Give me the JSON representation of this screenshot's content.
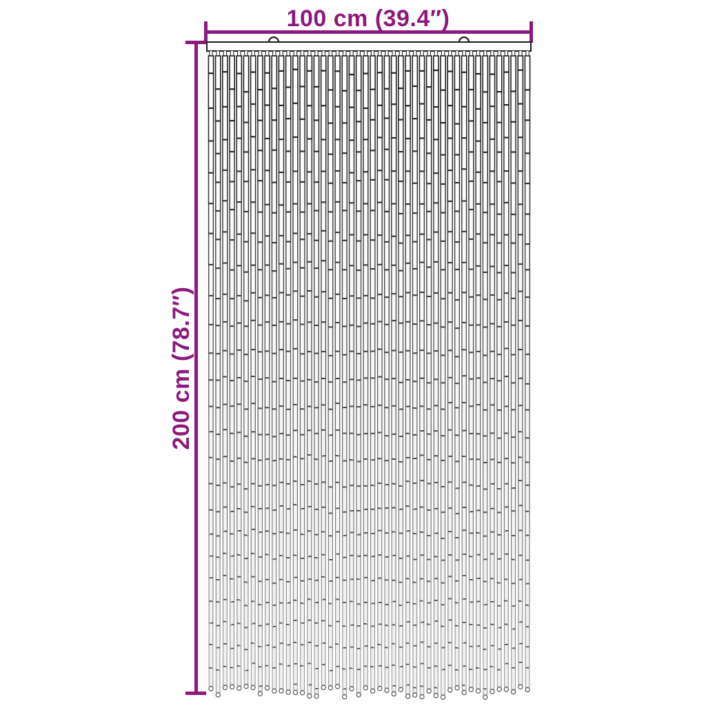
{
  "diagram": {
    "type": "product-dimension-diagram",
    "product": "bamboo-bead-door-curtain",
    "background_color": "#ffffff",
    "dimension_color": "#8C197D",
    "width_dimension": {
      "label": "100 cm (39.4″)"
    },
    "height_dimension": {
      "label": "200 cm (78.7″)"
    },
    "curtain": {
      "strand_count": 46,
      "hook_count": 2,
      "rail_fill": "#ffffff",
      "rail_stroke": "#1b1b1b",
      "strand_stroke_top": "#1e1e1e",
      "strand_stroke_bottom": "#9a9a9a",
      "strand_fill_top": "#ffffff",
      "strand_fill_bottom": "#efefef",
      "joint_color": "#161616",
      "ring_color": "#555555"
    }
  }
}
